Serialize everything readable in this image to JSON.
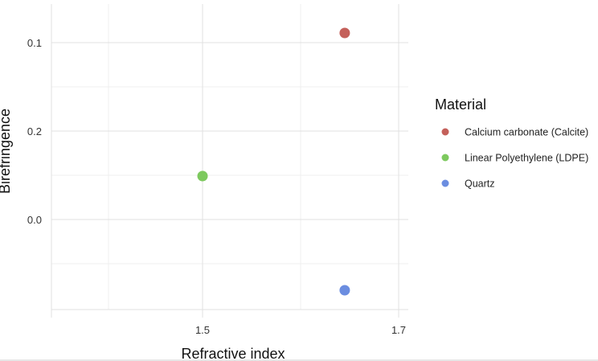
{
  "chart_data": {
    "type": "scatter",
    "xlabel": "Refractive index",
    "ylabel": "Birefringence",
    "x_ticks": [
      "1.5",
      "1.7"
    ],
    "y_ticks": [
      "0.1",
      "0.2",
      "0.0"
    ],
    "grid": true,
    "legend": {
      "title": "Material",
      "placement": "right",
      "entries": [
        {
          "label": "Calcium carbonate (Calcite)",
          "color": "#c4605a"
        },
        {
          "label": "Linear Polyethylene (LDPE)",
          "color": "#7dc95e"
        },
        {
          "label": "Quartz",
          "color": "#6b8de0"
        }
      ]
    },
    "series": [
      {
        "name": "Calcium carbonate (Calcite)",
        "color": "#c4605a",
        "points": [
          {
            "x": 1.645,
            "y": 0.1
          }
        ]
      },
      {
        "name": "Linear Polyethylene (LDPE)",
        "color": "#7dc95e",
        "points": [
          {
            "x": 1.5,
            "y": 0.2
          }
        ]
      },
      {
        "name": "Quartz",
        "color": "#6b8de0",
        "points": [
          {
            "x": 1.645,
            "y": 0.0
          }
        ]
      }
    ]
  }
}
